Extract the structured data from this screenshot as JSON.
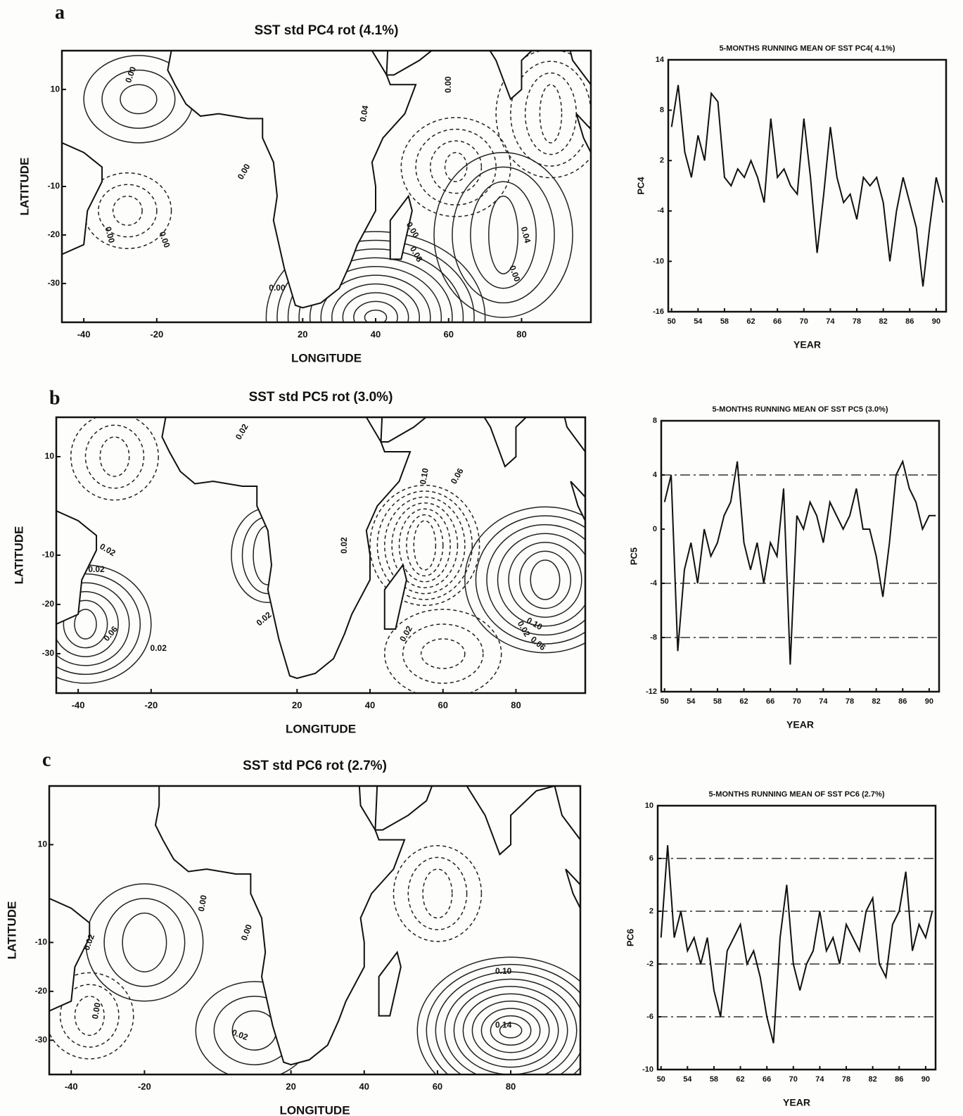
{
  "chart_data": [
    {
      "type": "map",
      "panel_label": "a",
      "title": "SST std PC4 rot (4.1%)",
      "xlabel": "LONGITUDE",
      "ylabel": "LATITUDE",
      "xlim": [
        -46,
        99
      ],
      "ylim": [
        -38,
        18
      ],
      "xticks": [
        -40,
        -20,
        20,
        40,
        60,
        80
      ],
      "yticks": [
        10,
        -10,
        -20,
        -30
      ],
      "annotations": [
        "0.00",
        "0.00",
        "0.00",
        "0.00",
        "0.00",
        "0.00",
        "0.04",
        "0.00",
        "0.08",
        "0.04",
        "0.00"
      ]
    },
    {
      "type": "line",
      "title": "5-MONTHS RUNNING MEAN OF SST PC4( 4.1%)",
      "xlabel": "YEAR",
      "ylabel": "PC4",
      "color": "#111111",
      "x": [
        50,
        51,
        52,
        53,
        54,
        55,
        56,
        57,
        58,
        59,
        60,
        61,
        62,
        63,
        64,
        65,
        66,
        67,
        68,
        69,
        70,
        71,
        72,
        73,
        74,
        75,
        76,
        77,
        78,
        79,
        80,
        81,
        82,
        83,
        84,
        85,
        86,
        87,
        88,
        89,
        90,
        91
      ],
      "values": [
        6,
        11,
        3,
        0,
        5,
        2,
        10,
        9,
        0,
        -1,
        1,
        0,
        2,
        0,
        -3,
        7,
        0,
        1,
        -1,
        -2,
        7,
        0,
        -9,
        -2,
        6,
        0,
        -3,
        -2,
        -5,
        0,
        -1,
        0,
        -3,
        -10,
        -4,
        0,
        -3,
        -6,
        -13,
        -6,
        0,
        -3
      ],
      "xlim": [
        49.5,
        91.5
      ],
      "ylim": [
        -16,
        14
      ],
      "xticks": [
        50,
        54,
        58,
        62,
        66,
        70,
        74,
        78,
        82,
        86,
        90
      ],
      "yticks": [
        14,
        8,
        2,
        -4,
        -10,
        -16
      ]
    },
    {
      "type": "map",
      "panel_label": "b",
      "title": "SST std PC5 rot (3.0%)",
      "xlabel": "LONGITUDE",
      "ylabel": "LATITUDE",
      "xlim": [
        -46,
        99
      ],
      "ylim": [
        -38,
        18
      ],
      "xticks": [
        -40,
        -20,
        20,
        40,
        60,
        80
      ],
      "yticks": [
        10,
        -10,
        -20,
        -30
      ],
      "annotations": [
        "0.02",
        "0.02",
        "0.02",
        "0.02",
        "0.06",
        "0.02",
        "0.10",
        "0.06",
        "0.02",
        "0.02",
        "0.10",
        "0.06",
        "0.02"
      ]
    },
    {
      "type": "line",
      "title": "5-MONTHS RUNNING MEAN OF SST PC5 (3.0%)",
      "xlabel": "YEAR",
      "ylabel": "PC5",
      "color": "#111111",
      "x": [
        50,
        51,
        52,
        53,
        54,
        55,
        56,
        57,
        58,
        59,
        60,
        61,
        62,
        63,
        64,
        65,
        66,
        67,
        68,
        69,
        70,
        71,
        72,
        73,
        74,
        75,
        76,
        77,
        78,
        79,
        80,
        81,
        82,
        83,
        84,
        85,
        86,
        87,
        88,
        89,
        90,
        91
      ],
      "values": [
        2,
        4,
        -9,
        -3,
        -1,
        -4,
        0,
        -2,
        -1,
        1,
        2,
        5,
        -1,
        -3,
        -1,
        -4,
        -1,
        -2,
        3,
        -10,
        1,
        0,
        2,
        1,
        -1,
        2,
        1,
        0,
        1,
        3,
        0,
        0,
        -2,
        -5,
        -1,
        4,
        5,
        3,
        2,
        0,
        1,
        1
      ],
      "xlim": [
        49.5,
        91.5
      ],
      "ylim": [
        -12,
        8
      ],
      "xticks": [
        50,
        54,
        58,
        62,
        66,
        70,
        74,
        78,
        82,
        86,
        90
      ],
      "yticks": [
        8,
        4,
        0,
        -4,
        -8,
        -12
      ],
      "reference_lines": [
        4,
        -4,
        -8
      ]
    },
    {
      "type": "map",
      "panel_label": "c",
      "title": "SST std PC6 rot (2.7%)",
      "xlabel": "LONGITUDE",
      "ylabel": "LATITUDE",
      "xlim": [
        -46,
        99
      ],
      "ylim": [
        -37,
        22
      ],
      "xticks": [
        -40,
        -20,
        20,
        40,
        60,
        80
      ],
      "yticks": [
        10,
        -10,
        -20,
        -30
      ],
      "annotations": [
        "0.02",
        "0.00",
        "0.00",
        "0.00",
        "0.02",
        "0.10",
        "0.14"
      ]
    },
    {
      "type": "line",
      "title": "5-MONTHS RUNNING MEAN OF SST PC6 (2.7%)",
      "xlabel": "YEAR",
      "ylabel": "PC6",
      "color": "#111111",
      "x": [
        50,
        51,
        52,
        53,
        54,
        55,
        56,
        57,
        58,
        59,
        60,
        61,
        62,
        63,
        64,
        65,
        66,
        67,
        68,
        69,
        70,
        71,
        72,
        73,
        74,
        75,
        76,
        77,
        78,
        79,
        80,
        81,
        82,
        83,
        84,
        85,
        86,
        87,
        88,
        89,
        90,
        91
      ],
      "values": [
        0,
        7,
        0,
        2,
        -1,
        0,
        -2,
        0,
        -4,
        -6,
        -1,
        0,
        1,
        -2,
        -1,
        -3,
        -6,
        -8,
        0,
        4,
        -2,
        -4,
        -2,
        -1,
        2,
        -1,
        0,
        -2,
        1,
        0,
        -1,
        2,
        3,
        -2,
        -3,
        1,
        2,
        5,
        -1,
        1,
        0,
        2
      ],
      "xlim": [
        49.5,
        91.5
      ],
      "ylim": [
        -10,
        10
      ],
      "xticks": [
        50,
        54,
        58,
        62,
        66,
        70,
        74,
        78,
        82,
        86,
        90
      ],
      "yticks": [
        10,
        6,
        2,
        -2,
        -6,
        -10
      ],
      "reference_lines": [
        6,
        2,
        -2,
        -6
      ]
    }
  ]
}
